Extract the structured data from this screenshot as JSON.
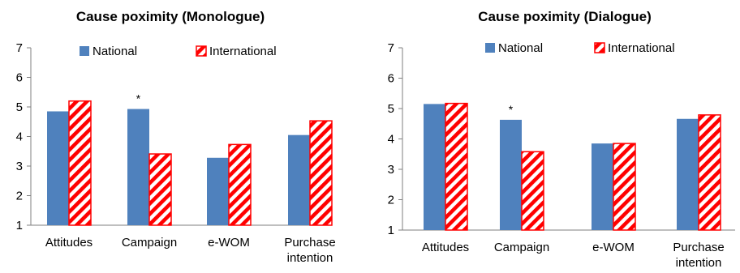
{
  "chart_data": [
    {
      "type": "bar",
      "title": "Cause poximity (Monologue)",
      "categories": [
        "Attitudes",
        "Campaign",
        "e-WOM",
        "Purchase intention"
      ],
      "category_lines": [
        [
          "Attitudes"
        ],
        [
          "Campaign"
        ],
        [
          "e-WOM"
        ],
        [
          "Purchase",
          "intention"
        ]
      ],
      "series": [
        {
          "name": "National",
          "values": [
            4.85,
            4.93,
            3.28,
            4.05
          ],
          "color": "#4f81bd",
          "pattern": "solid"
        },
        {
          "name": "International",
          "values": [
            5.2,
            3.41,
            3.73,
            4.53
          ],
          "color": "#ff0000",
          "pattern": "diagonal-stripes"
        }
      ],
      "annotations": [
        {
          "text": "*",
          "category": "Campaign",
          "series": "National"
        }
      ],
      "ylim": [
        1,
        7
      ],
      "yticks": [
        1,
        2,
        3,
        4,
        5,
        6,
        7
      ],
      "xlabel": "",
      "ylabel": "",
      "grid": false,
      "legend_position": "top"
    },
    {
      "type": "bar",
      "title": "Cause poximity (Dialogue)",
      "categories": [
        "Attitudes",
        "Campaign",
        "e-WOM",
        "Purchase intention"
      ],
      "category_lines": [
        [
          "Attitudes"
        ],
        [
          "Campaign"
        ],
        [
          "e-WOM"
        ],
        [
          "Purchase",
          "intention"
        ]
      ],
      "series": [
        {
          "name": "National",
          "values": [
            5.15,
            4.63,
            3.85,
            4.66
          ],
          "color": "#4f81bd",
          "pattern": "solid"
        },
        {
          "name": "International",
          "values": [
            5.17,
            3.58,
            3.85,
            4.79
          ],
          "color": "#ff0000",
          "pattern": "diagonal-stripes"
        }
      ],
      "annotations": [
        {
          "text": "*",
          "category": "Campaign",
          "series": "National"
        }
      ],
      "ylim": [
        1,
        7
      ],
      "yticks": [
        1,
        2,
        3,
        4,
        5,
        6,
        7
      ],
      "xlabel": "",
      "ylabel": "",
      "grid": false,
      "legend_position": "top"
    }
  ]
}
